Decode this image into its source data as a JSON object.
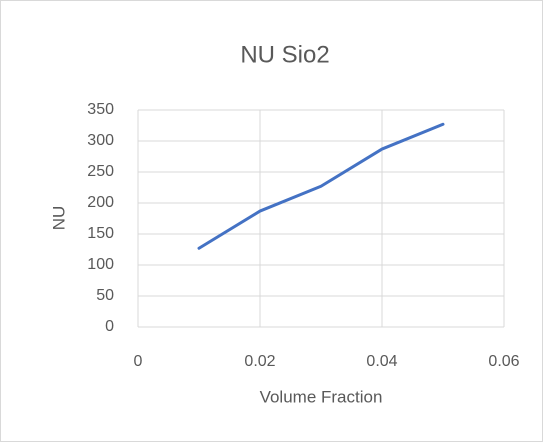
{
  "chart_data": {
    "type": "line",
    "title": "NU Sio2",
    "x_label": "Volume Fraction",
    "y_label": "NU",
    "x": [
      0.01,
      0.02,
      0.03,
      0.04,
      0.05
    ],
    "series": [
      {
        "name": "NU",
        "color": "#4472c4",
        "values": [
          127,
          187,
          227,
          287,
          327
        ]
      }
    ],
    "xlim": [
      0,
      0.06
    ],
    "xticks": [
      0,
      0.02,
      0.04,
      0.06
    ],
    "ylim": [
      0,
      350
    ],
    "yticks": [
      0,
      50,
      100,
      150,
      200,
      250,
      300,
      350
    ],
    "grid": true
  }
}
